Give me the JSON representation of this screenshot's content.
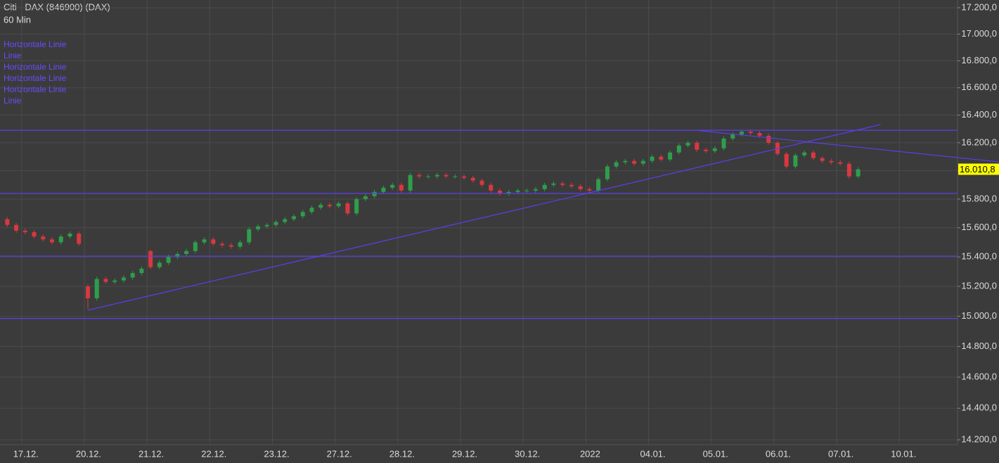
{
  "chart_data": {
    "type": "candlestick",
    "title": "Citi - DAX (846900) (DAX)",
    "subtitle": "60 Min",
    "log_scale": true,
    "grid": true,
    "up_color": "#2e9e4a",
    "down_color": "#d8383f",
    "drawing_color": "#5b3ff0",
    "ylim": [
      14169,
      17259
    ],
    "yticks": [
      {
        "value": 14200,
        "label": "14.200,0"
      },
      {
        "value": 14400,
        "label": "14.400,0"
      },
      {
        "value": 14600,
        "label": "14.600,0"
      },
      {
        "value": 14800,
        "label": "14.800,0"
      },
      {
        "value": 15000,
        "label": "15.000,0"
      },
      {
        "value": 15200,
        "label": "15.200,0"
      },
      {
        "value": 15400,
        "label": "15.400,0"
      },
      {
        "value": 15600,
        "label": "15.600,0"
      },
      {
        "value": 15800,
        "label": "15.800,0"
      },
      {
        "value": 16000,
        "label": "16.000,0"
      },
      {
        "value": 16200,
        "label": "16.200,0"
      },
      {
        "value": 16400,
        "label": "16.400,0"
      },
      {
        "value": 16600,
        "label": "16.600,0"
      },
      {
        "value": 16800,
        "label": "16.800,0"
      },
      {
        "value": 17000,
        "label": "17.000,0"
      },
      {
        "value": 17200,
        "label": "17.200,0"
      }
    ],
    "categories": [
      null,
      null,
      "17.12.",
      null,
      null,
      null,
      null,
      null,
      null,
      "20.12.",
      null,
      null,
      null,
      null,
      null,
      null,
      "21.12.",
      null,
      null,
      null,
      null,
      null,
      null,
      "22.12.",
      null,
      null,
      null,
      null,
      null,
      null,
      "23.12.",
      null,
      null,
      null,
      null,
      null,
      null,
      "27.12.",
      null,
      null,
      null,
      null,
      null,
      null,
      "28.12.",
      null,
      null,
      null,
      null,
      null,
      null,
      "29.12.",
      null,
      null,
      null,
      null,
      null,
      null,
      "30.12.",
      null,
      null,
      null,
      null,
      null,
      null,
      "2022",
      null,
      null,
      null,
      null,
      null,
      null,
      "04.01.",
      null,
      null,
      null,
      null,
      null,
      null,
      "05.01.",
      null,
      null,
      null,
      null,
      null,
      null,
      "06.01.",
      null,
      null,
      null,
      null,
      null,
      null,
      "07.01.",
      null,
      null,
      null,
      null,
      null,
      null,
      "10.01."
    ],
    "open": [
      15660,
      15620,
      15580,
      15570,
      15540,
      15520,
      15500,
      15540,
      15560,
      15200,
      15120,
      15250,
      15230,
      15240,
      15260,
      15290,
      15440,
      15330,
      15360,
      15400,
      15420,
      15440,
      15500,
      15520,
      15490,
      15480,
      15470,
      15500,
      15590,
      15610,
      15620,
      15640,
      15660,
      15680,
      15710,
      15740,
      15760,
      15750,
      15770,
      15700,
      15800,
      15820,
      15850,
      15880,
      15900,
      15860,
      15970,
      15960,
      15960,
      15970,
      15960,
      15960,
      15950,
      15930,
      15900,
      15860,
      15840,
      15850,
      15860,
      15860,
      15870,
      15900,
      15910,
      15900,
      15890,
      15870,
      15860,
      15940,
      16030,
      16060,
      16070,
      16050,
      16070,
      16100,
      16080,
      16130,
      16180,
      16200,
      16150,
      16140,
      16160,
      16230,
      16260,
      16280,
      16270,
      16250,
      16200,
      16120,
      16030,
      16110,
      16130,
      16090,
      16070,
      16060,
      16050,
      15960,
      null,
      null,
      null,
      null,
      null
    ],
    "high": [
      15675,
      15635,
      15595,
      15585,
      15555,
      15535,
      15555,
      15575,
      15575,
      15215,
      15265,
      15265,
      15255,
      15275,
      15305,
      15335,
      15450,
      15375,
      15415,
      15435,
      15455,
      15515,
      15535,
      15535,
      15505,
      15495,
      15515,
      15605,
      15625,
      15635,
      15655,
      15675,
      15695,
      15725,
      15755,
      15775,
      15775,
      15785,
      15785,
      15815,
      15835,
      15865,
      15895,
      15915,
      15915,
      15985,
      15985,
      15975,
      15985,
      15985,
      15975,
      15975,
      15965,
      15945,
      15915,
      15875,
      15865,
      15875,
      15875,
      15885,
      15915,
      15925,
      15925,
      15915,
      15905,
      15885,
      15955,
      16045,
      16075,
      16085,
      16085,
      16085,
      16115,
      16115,
      16145,
      16195,
      16215,
      16215,
      16165,
      16175,
      16245,
      16275,
      16295,
      16295,
      16285,
      16265,
      16215,
      16135,
      16125,
      16145,
      16145,
      16105,
      16085,
      16075,
      16065,
      16025,
      null,
      null,
      null,
      null,
      null
    ],
    "low": [
      15605,
      15565,
      15555,
      15525,
      15505,
      15485,
      15485,
      15525,
      15475,
      15050,
      15105,
      15215,
      15215,
      15225,
      15245,
      15275,
      15315,
      15315,
      15345,
      15385,
      15405,
      15425,
      15485,
      15475,
      15465,
      15455,
      15455,
      15485,
      15575,
      15595,
      15605,
      15625,
      15645,
      15665,
      15695,
      15725,
      15735,
      15735,
      15685,
      15685,
      15785,
      15805,
      15835,
      15865,
      15845,
      15845,
      15945,
      15945,
      15945,
      15945,
      15945,
      15935,
      15915,
      15885,
      15845,
      15825,
      15825,
      15835,
      15845,
      15845,
      15855,
      15885,
      15885,
      15875,
      15855,
      15845,
      15845,
      15925,
      16015,
      16045,
      16035,
      16035,
      16055,
      16065,
      16065,
      16115,
      16165,
      16135,
      16125,
      16125,
      16145,
      16215,
      16245,
      16255,
      16235,
      16185,
      16105,
      16015,
      16015,
      16095,
      16075,
      16055,
      16045,
      16035,
      15945,
      15945,
      null,
      null,
      null,
      null,
      null
    ],
    "close": [
      15620,
      15580,
      15570,
      15540,
      15520,
      15500,
      15540,
      15560,
      15490,
      15120,
      15250,
      15230,
      15240,
      15260,
      15290,
      15320,
      15330,
      15360,
      15400,
      15420,
      15440,
      15500,
      15520,
      15490,
      15480,
      15470,
      15500,
      15590,
      15610,
      15620,
      15640,
      15660,
      15680,
      15710,
      15740,
      15760,
      15750,
      15770,
      15700,
      15800,
      15820,
      15850,
      15880,
      15900,
      15860,
      15970,
      15960,
      15960,
      15970,
      15960,
      15960,
      15950,
      15930,
      15900,
      15860,
      15840,
      15850,
      15860,
      15860,
      15870,
      15900,
      15910,
      15900,
      15890,
      15870,
      15860,
      15940,
      16030,
      16060,
      16070,
      16050,
      16070,
      16100,
      16080,
      16130,
      16180,
      16200,
      16150,
      16140,
      16160,
      16230,
      16260,
      16280,
      16270,
      16250,
      16200,
      16120,
      16030,
      16110,
      16130,
      16090,
      16070,
      16060,
      16050,
      15960,
      16010,
      null,
      null,
      null,
      null,
      null
    ],
    "last_price": {
      "value": 16010.8,
      "label": "16.010,8"
    },
    "drawings": [
      {
        "name": "Horizontale Linie",
        "y": 16290
      },
      {
        "name": "Linie",
        "x": [
          9,
          97.5
        ],
        "y": [
          15040,
          16331
        ]
      },
      {
        "name": "Horizontale Linie",
        "y": 15840
      },
      {
        "name": "Horizontale Linie",
        "y": 15405
      },
      {
        "name": "Horizontale Linie",
        "y": 14985
      },
      {
        "name": "Linie",
        "x": [
          76.9,
          110.7
        ],
        "y": [
          16290,
          16063
        ]
      }
    ]
  }
}
